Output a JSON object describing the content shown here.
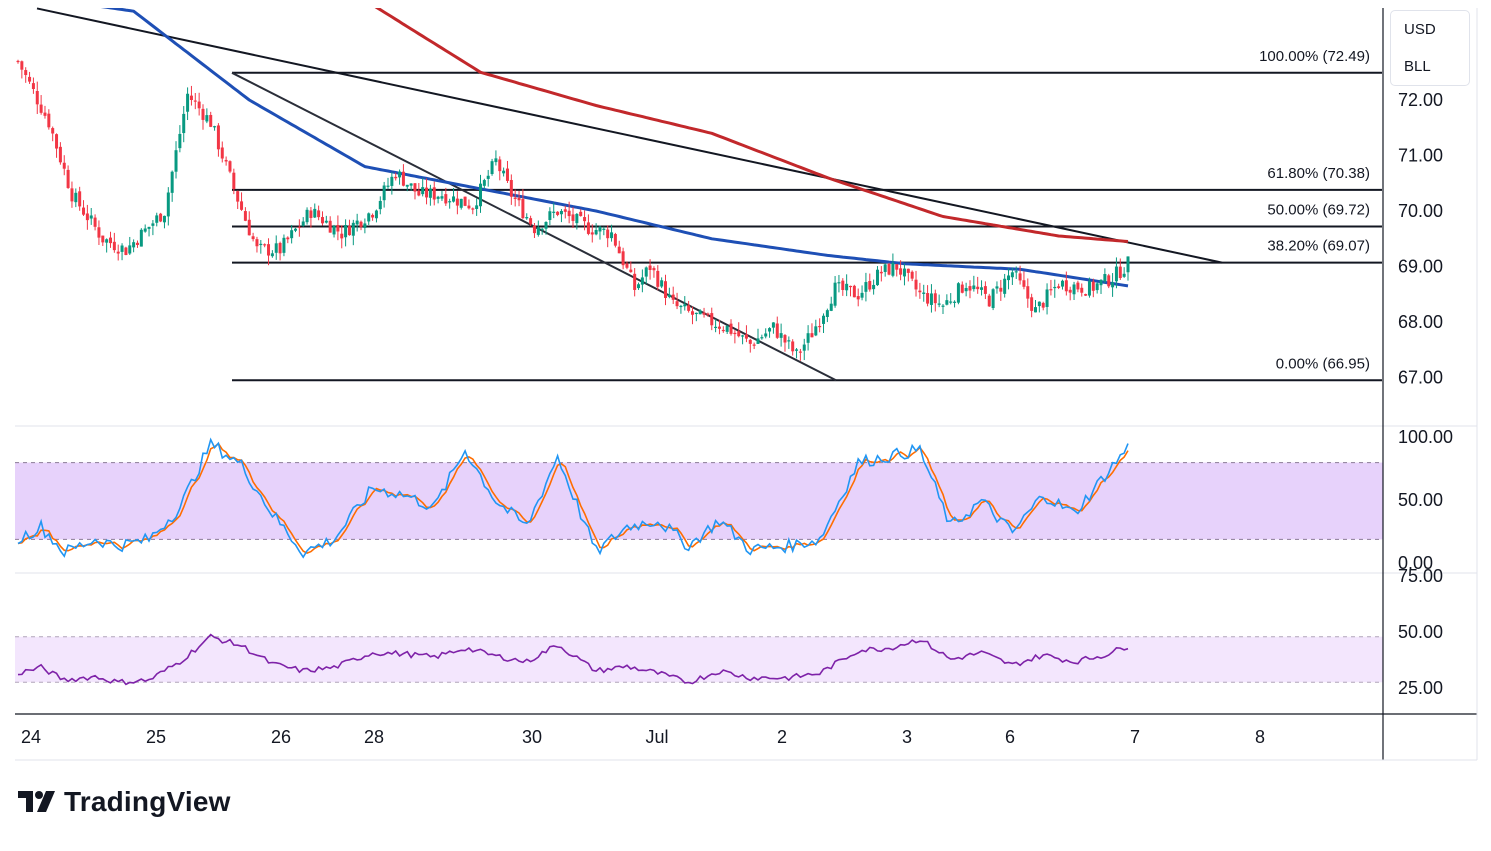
{
  "currency_box": {
    "currency": "USD",
    "symbol": "BLL"
  },
  "brand": {
    "name": "TradingView"
  },
  "colors": {
    "up": "#089981",
    "down": "#f23645",
    "ma_fast": "#1e4fb5",
    "ma_slow": "#c2282b",
    "k_line": "#2196f3",
    "d_line": "#ff6d00",
    "rsi": "#7e22a8",
    "stoch_band": "#e7d2fb",
    "rsi_band": "#f3e6fd"
  },
  "chart_data": [
    {
      "type": "candlestick",
      "ylim": [
        66.2,
        73.6
      ],
      "yticks": [
        "72.00",
        "71.00",
        "70.00",
        "69.00",
        "68.00",
        "67.00"
      ],
      "xticks": [
        "24",
        "25",
        "26",
        "28",
        "30",
        "Jul",
        "2",
        "3",
        "6",
        "7",
        "8"
      ],
      "fib_levels": [
        {
          "label": "100.00% (72.49)",
          "price": 72.49
        },
        {
          "label": "61.80% (70.38)",
          "price": 70.38
        },
        {
          "label": "50.00% (69.72)",
          "price": 69.72
        },
        {
          "label": "38.20% (69.07)",
          "price": 69.07
        },
        {
          "label": "0.00% (66.95)",
          "price": 66.95
        }
      ],
      "close_key_points": [
        [
          0,
          72.7
        ],
        [
          8,
          71.6
        ],
        [
          14,
          70.3
        ],
        [
          22,
          69.5
        ],
        [
          28,
          69.3
        ],
        [
          38,
          70.0
        ],
        [
          44,
          72.1
        ],
        [
          50,
          71.6
        ],
        [
          56,
          70.4
        ],
        [
          62,
          69.3
        ],
        [
          68,
          69.3
        ],
        [
          76,
          70.0
        ],
        [
          84,
          69.6
        ],
        [
          92,
          70.0
        ],
        [
          98,
          70.7
        ],
        [
          104,
          70.3
        ],
        [
          110,
          70.3
        ],
        [
          118,
          70.1
        ],
        [
          124,
          70.9
        ],
        [
          128,
          70.3
        ],
        [
          134,
          69.7
        ],
        [
          140,
          70.0
        ],
        [
          148,
          69.7
        ],
        [
          154,
          69.6
        ],
        [
          160,
          68.6
        ],
        [
          164,
          69.0
        ],
        [
          170,
          68.3
        ],
        [
          176,
          68.1
        ],
        [
          184,
          67.9
        ],
        [
          190,
          67.6
        ],
        [
          196,
          67.9
        ],
        [
          202,
          67.4
        ],
        [
          206,
          67.8
        ],
        [
          212,
          68.6
        ],
        [
          218,
          68.5
        ],
        [
          224,
          68.9
        ],
        [
          228,
          69.0
        ],
        [
          234,
          68.5
        ],
        [
          240,
          68.3
        ],
        [
          246,
          68.7
        ],
        [
          252,
          68.4
        ],
        [
          258,
          68.9
        ],
        [
          264,
          68.2
        ],
        [
          270,
          68.7
        ],
        [
          278,
          68.6
        ],
        [
          284,
          68.8
        ],
        [
          288,
          69.05
        ]
      ],
      "ma_fast": [
        [
          0,
          73.9
        ],
        [
          30,
          73.6
        ],
        [
          60,
          72.0
        ],
        [
          90,
          70.8
        ],
        [
          120,
          70.4
        ],
        [
          150,
          70.0
        ],
        [
          180,
          69.5
        ],
        [
          210,
          69.2
        ],
        [
          230,
          69.05
        ],
        [
          260,
          68.95
        ],
        [
          288,
          68.65
        ]
      ],
      "ma_slow": [
        [
          90,
          73.8
        ],
        [
          120,
          72.5
        ],
        [
          150,
          71.9
        ],
        [
          180,
          71.4
        ],
        [
          210,
          70.6
        ],
        [
          240,
          69.9
        ],
        [
          270,
          69.55
        ],
        [
          288,
          69.45
        ]
      ]
    },
    {
      "type": "line",
      "name": "stochastic",
      "ylim": [
        0,
        100
      ],
      "yticks": [
        "100.00",
        "50.00",
        "0.00"
      ],
      "band": [
        20,
        80
      ],
      "k_points": [
        [
          0,
          20
        ],
        [
          6,
          30
        ],
        [
          12,
          10
        ],
        [
          20,
          20
        ],
        [
          26,
          15
        ],
        [
          34,
          20
        ],
        [
          42,
          45
        ],
        [
          50,
          95
        ],
        [
          58,
          78
        ],
        [
          66,
          40
        ],
        [
          74,
          10
        ],
        [
          82,
          20
        ],
        [
          92,
          60
        ],
        [
          100,
          55
        ],
        [
          108,
          45
        ],
        [
          116,
          90
        ],
        [
          124,
          50
        ],
        [
          132,
          30
        ],
        [
          140,
          85
        ],
        [
          150,
          10
        ],
        [
          158,
          30
        ],
        [
          166,
          35
        ],
        [
          174,
          15
        ],
        [
          182,
          35
        ],
        [
          190,
          12
        ],
        [
          200,
          15
        ],
        [
          208,
          20
        ],
        [
          218,
          80
        ],
        [
          226,
          85
        ],
        [
          234,
          90
        ],
        [
          242,
          30
        ],
        [
          250,
          50
        ],
        [
          258,
          25
        ],
        [
          266,
          55
        ],
        [
          274,
          40
        ],
        [
          282,
          70
        ],
        [
          288,
          92
        ]
      ]
    },
    {
      "type": "line",
      "name": "rsi",
      "ylim": [
        15,
        78
      ],
      "yticks": [
        "75.00",
        "50.00",
        "25.00"
      ],
      "band": [
        30,
        70
      ],
      "points": [
        [
          0,
          38
        ],
        [
          6,
          43
        ],
        [
          12,
          32
        ],
        [
          20,
          35
        ],
        [
          26,
          30
        ],
        [
          34,
          32
        ],
        [
          42,
          48
        ],
        [
          50,
          70
        ],
        [
          58,
          62
        ],
        [
          66,
          46
        ],
        [
          74,
          40
        ],
        [
          82,
          43
        ],
        [
          92,
          56
        ],
        [
          100,
          55
        ],
        [
          108,
          52
        ],
        [
          116,
          60
        ],
        [
          124,
          53
        ],
        [
          132,
          48
        ],
        [
          140,
          63
        ],
        [
          150,
          40
        ],
        [
          158,
          44
        ],
        [
          166,
          38
        ],
        [
          174,
          30
        ],
        [
          182,
          40
        ],
        [
          190,
          34
        ],
        [
          200,
          34
        ],
        [
          208,
          38
        ],
        [
          218,
          58
        ],
        [
          226,
          60
        ],
        [
          234,
          68
        ],
        [
          242,
          50
        ],
        [
          250,
          56
        ],
        [
          258,
          45
        ],
        [
          266,
          54
        ],
        [
          274,
          48
        ],
        [
          282,
          54
        ],
        [
          288,
          62
        ]
      ]
    }
  ]
}
